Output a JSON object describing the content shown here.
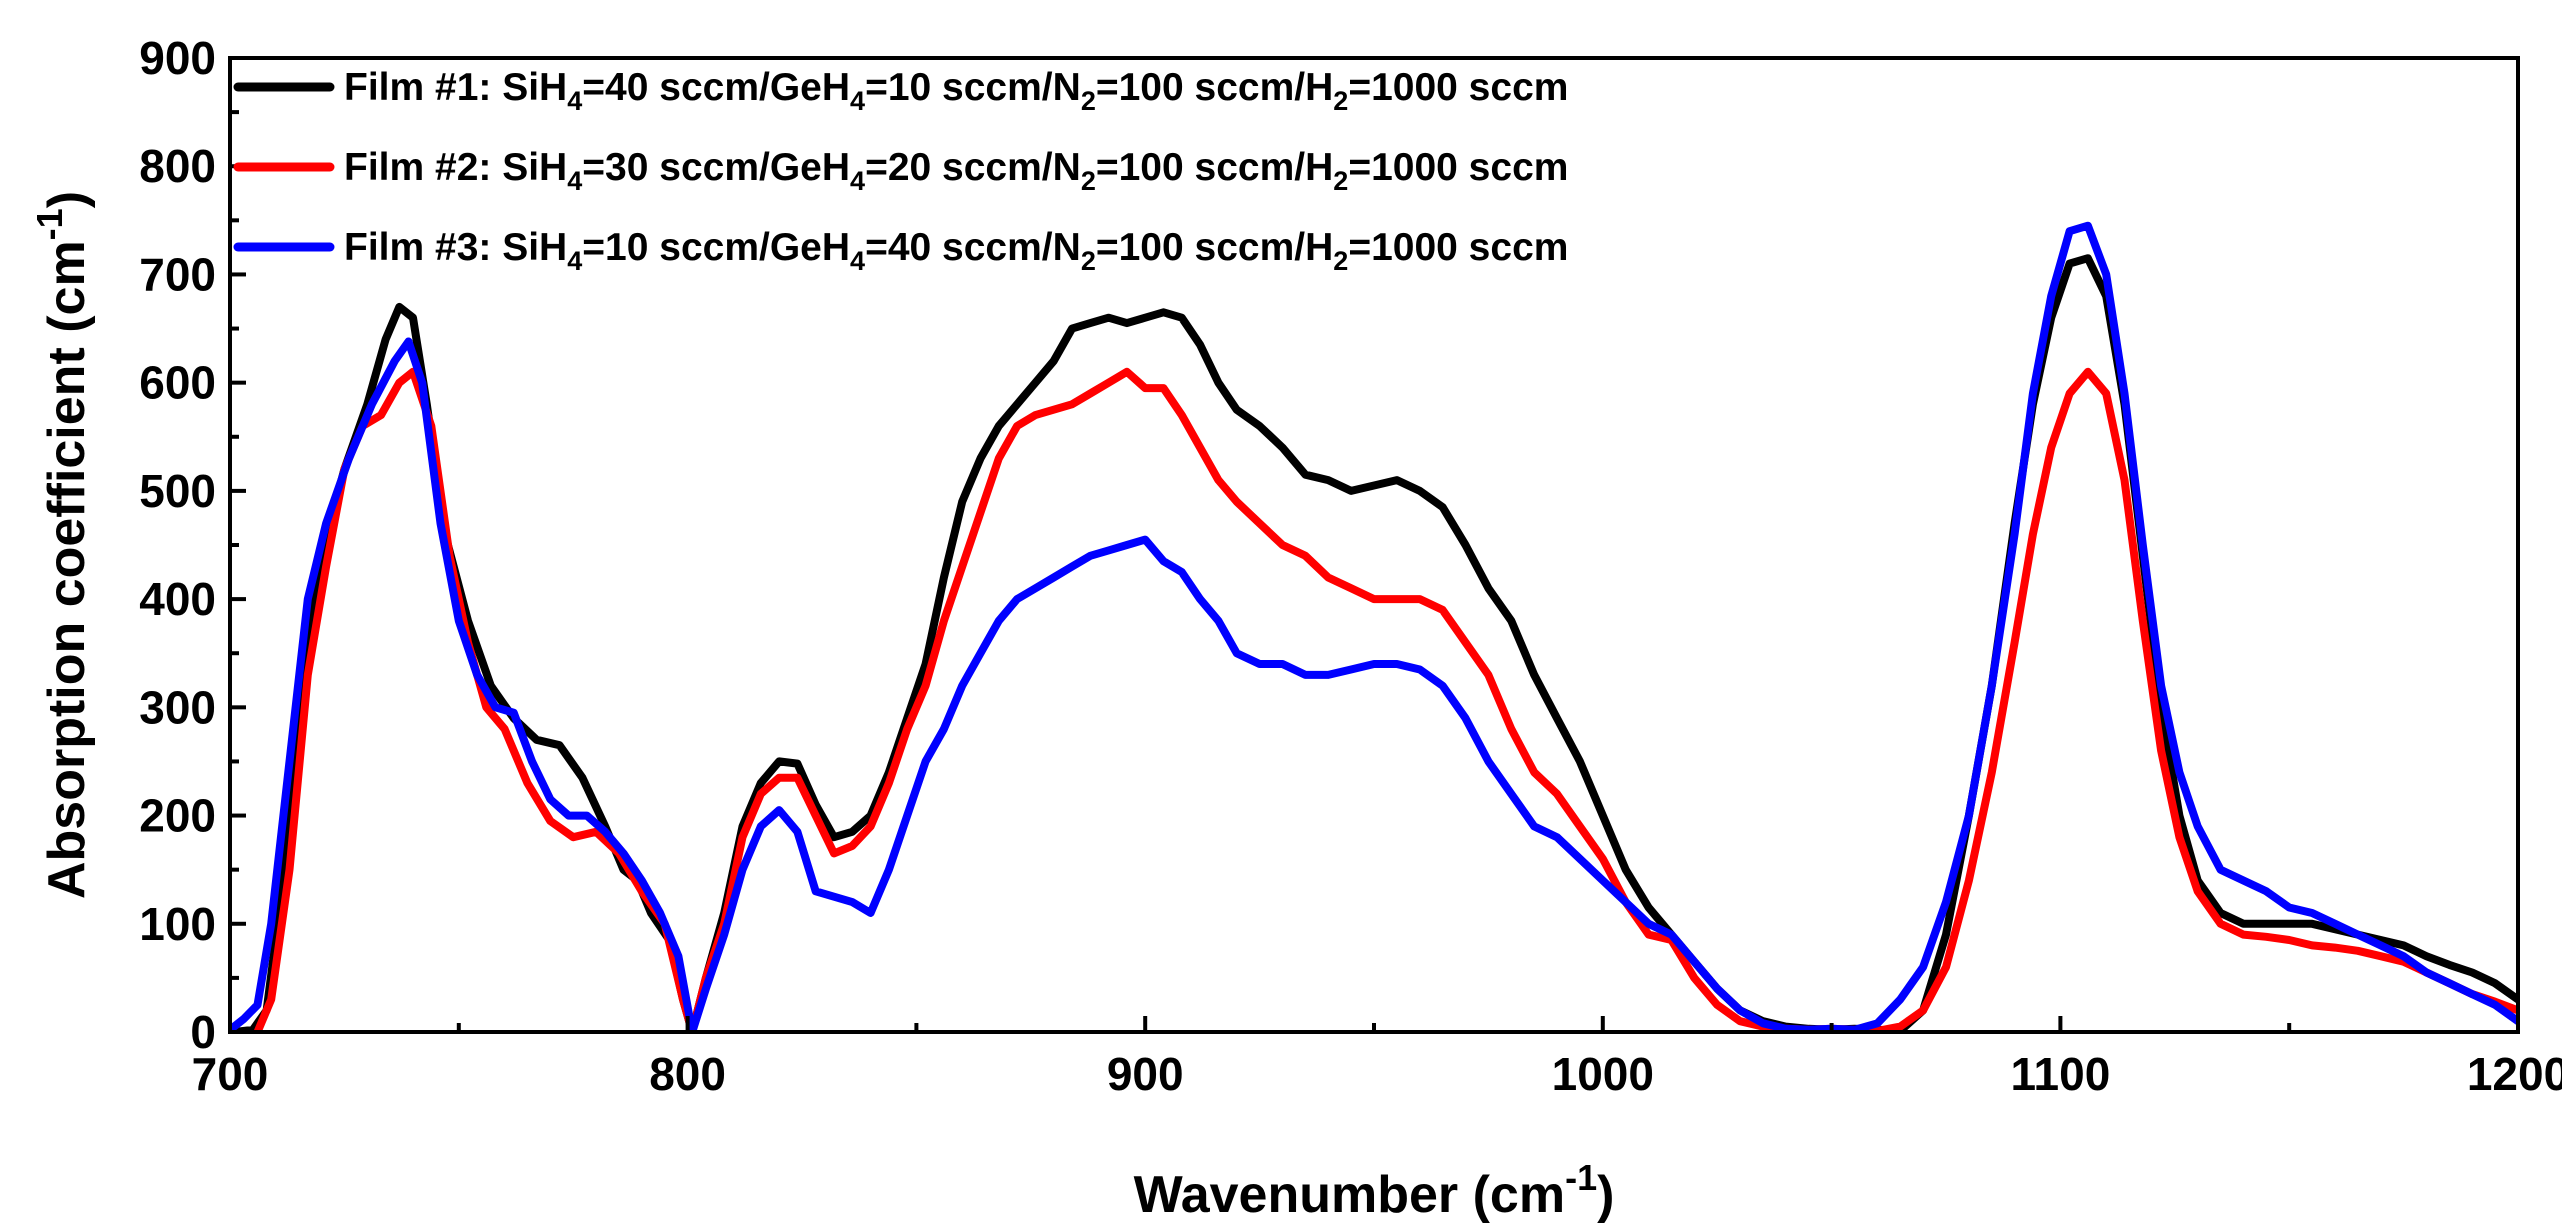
{
  "chart_data": {
    "type": "line",
    "title": "",
    "xlabel": {
      "main": "Wavenumber (cm",
      "sup": "-1",
      "close": ")"
    },
    "ylabel": {
      "main": "Absorption coefficient (cm",
      "sup": "-1",
      "close": ")"
    },
    "xlim": [
      700,
      1200
    ],
    "ylim": [
      0,
      900
    ],
    "xticks": [
      700,
      800,
      900,
      1000,
      1100,
      1200
    ],
    "yticks": [
      0,
      100,
      200,
      300,
      400,
      500,
      600,
      700,
      800,
      900
    ],
    "grid": false,
    "legend_position": "top-left",
    "series": [
      {
        "name": "Film #1",
        "color": "#000000",
        "legend": [
          {
            "t": "Film #1: SiH"
          },
          {
            "t": "4",
            "sub": true
          },
          {
            "t": "=40 sccm/GeH"
          },
          {
            "t": "4",
            "sub": true
          },
          {
            "t": "=10 sccm/N"
          },
          {
            "t": "2",
            "sub": true
          },
          {
            "t": "=100 sccm/H"
          },
          {
            "t": "2",
            "sub": true
          },
          {
            "t": "=1000 sccm"
          }
        ],
        "x": [
          701,
          705,
          708,
          712,
          716,
          720,
          725,
          730,
          734,
          737,
          740,
          743,
          747,
          752,
          757,
          762,
          767,
          772,
          777,
          782,
          786,
          789,
          792,
          796,
          799,
          801,
          804,
          808,
          812,
          816,
          820,
          824,
          828,
          832,
          836,
          840,
          844,
          848,
          852,
          856,
          860,
          864,
          868,
          872,
          876,
          880,
          884,
          888,
          892,
          896,
          900,
          904,
          908,
          912,
          916,
          920,
          925,
          930,
          935,
          940,
          945,
          950,
          955,
          960,
          965,
          970,
          975,
          980,
          985,
          990,
          995,
          1000,
          1005,
          1010,
          1015,
          1020,
          1025,
          1030,
          1035,
          1040,
          1045,
          1050,
          1055,
          1060,
          1065,
          1070,
          1075,
          1080,
          1085,
          1090,
          1094,
          1098,
          1102,
          1106,
          1110,
          1114,
          1118,
          1122,
          1126,
          1130,
          1135,
          1140,
          1145,
          1150,
          1155,
          1160,
          1165,
          1170,
          1175,
          1180,
          1185,
          1190,
          1195,
          1200
        ],
        "y": [
          0,
          2,
          20,
          150,
          320,
          440,
          520,
          580,
          640,
          670,
          660,
          580,
          460,
          380,
          320,
          290,
          270,
          265,
          235,
          190,
          150,
          140,
          110,
          85,
          30,
          0,
          50,
          110,
          190,
          230,
          250,
          248,
          210,
          180,
          185,
          200,
          240,
          290,
          340,
          420,
          490,
          530,
          560,
          580,
          600,
          620,
          650,
          655,
          660,
          655,
          660,
          665,
          660,
          635,
          600,
          575,
          560,
          540,
          515,
          510,
          500,
          505,
          510,
          500,
          485,
          450,
          410,
          380,
          330,
          290,
          250,
          200,
          150,
          115,
          90,
          65,
          40,
          20,
          10,
          5,
          3,
          2,
          3,
          2,
          1,
          20,
          90,
          200,
          320,
          470,
          580,
          660,
          710,
          715,
          680,
          580,
          440,
          300,
          200,
          140,
          110,
          100,
          100,
          100,
          100,
          95,
          90,
          85,
          80,
          70,
          62,
          55,
          45,
          30
        ]
      },
      {
        "name": "Film #2",
        "color": "#ff0000",
        "legend": [
          {
            "t": "Film #2: SiH"
          },
          {
            "t": "4",
            "sub": true
          },
          {
            "t": "=30 sccm/GeH"
          },
          {
            "t": "4",
            "sub": true
          },
          {
            "t": "=20 sccm/N"
          },
          {
            "t": "2",
            "sub": true
          },
          {
            "t": "=100 sccm/H"
          },
          {
            "t": "2",
            "sub": true
          },
          {
            "t": "=1000 sccm"
          }
        ],
        "x": [
          706,
          709,
          713,
          717,
          721,
          725,
          729,
          733,
          737,
          740,
          744,
          748,
          752,
          756,
          760,
          765,
          770,
          775,
          780,
          785,
          790,
          795,
          799,
          801,
          804,
          808,
          812,
          816,
          820,
          824,
          828,
          832,
          836,
          840,
          844,
          848,
          852,
          856,
          860,
          864,
          868,
          872,
          876,
          880,
          884,
          888,
          892,
          896,
          900,
          904,
          908,
          912,
          916,
          920,
          925,
          930,
          935,
          940,
          945,
          950,
          955,
          960,
          965,
          970,
          975,
          980,
          985,
          990,
          995,
          1000,
          1005,
          1010,
          1015,
          1020,
          1025,
          1030,
          1035,
          1040,
          1045,
          1050,
          1055,
          1060,
          1065,
          1070,
          1075,
          1080,
          1085,
          1090,
          1094,
          1098,
          1102,
          1106,
          1110,
          1114,
          1118,
          1122,
          1126,
          1130,
          1135,
          1140,
          1145,
          1150,
          1155,
          1160,
          1165,
          1170,
          1175,
          1180,
          1185,
          1190,
          1195,
          1200
        ],
        "y": [
          0,
          30,
          150,
          330,
          430,
          520,
          560,
          570,
          600,
          610,
          560,
          440,
          360,
          300,
          280,
          230,
          195,
          180,
          185,
          165,
          130,
          100,
          30,
          0,
          50,
          100,
          180,
          220,
          235,
          235,
          200,
          165,
          172,
          190,
          230,
          280,
          320,
          380,
          430,
          480,
          530,
          560,
          570,
          575,
          580,
          590,
          600,
          610,
          595,
          595,
          570,
          540,
          510,
          490,
          470,
          450,
          440,
          420,
          410,
          400,
          400,
          400,
          390,
          360,
          330,
          280,
          240,
          220,
          190,
          160,
          120,
          90,
          85,
          50,
          25,
          10,
          5,
          3,
          2,
          3,
          2,
          1,
          5,
          20,
          60,
          140,
          240,
          360,
          460,
          540,
          590,
          610,
          590,
          510,
          380,
          260,
          180,
          130,
          100,
          90,
          88,
          85,
          80,
          78,
          75,
          70,
          65,
          55,
          45,
          35,
          28,
          20
        ]
      },
      {
        "name": "Film #3",
        "color": "#0000ff",
        "legend": [
          {
            "t": "Film #3: SiH"
          },
          {
            "t": "4",
            "sub": true
          },
          {
            "t": "=10 sccm/GeH"
          },
          {
            "t": "4",
            "sub": true
          },
          {
            "t": "=40 sccm/N"
          },
          {
            "t": "2",
            "sub": true
          },
          {
            "t": "=100 sccm/H"
          },
          {
            "t": "2",
            "sub": true
          },
          {
            "t": "=1000 sccm"
          }
        ],
        "x": [
          700,
          703,
          706,
          709,
          713,
          717,
          721,
          726,
          731,
          736,
          739,
          742,
          746,
          750,
          754,
          758,
          762,
          766,
          770,
          774,
          778,
          782,
          786,
          790,
          794,
          798,
          801,
          804,
          808,
          812,
          816,
          820,
          824,
          828,
          832,
          836,
          840,
          844,
          848,
          852,
          856,
          860,
          864,
          868,
          872,
          876,
          880,
          884,
          888,
          892,
          896,
          900,
          904,
          908,
          912,
          916,
          920,
          925,
          930,
          935,
          940,
          945,
          950,
          955,
          960,
          965,
          970,
          975,
          980,
          985,
          990,
          995,
          1000,
          1005,
          1010,
          1015,
          1020,
          1025,
          1030,
          1035,
          1040,
          1045,
          1050,
          1055,
          1060,
          1065,
          1070,
          1075,
          1080,
          1085,
          1090,
          1094,
          1098,
          1102,
          1106,
          1110,
          1114,
          1118,
          1122,
          1126,
          1130,
          1135,
          1140,
          1145,
          1150,
          1155,
          1160,
          1165,
          1170,
          1175,
          1180,
          1185,
          1190,
          1195,
          1200
        ],
        "y": [
          2,
          12,
          25,
          100,
          250,
          400,
          470,
          530,
          580,
          620,
          638,
          600,
          470,
          380,
          330,
          300,
          295,
          250,
          215,
          200,
          200,
          185,
          165,
          140,
          110,
          70,
          0,
          40,
          90,
          150,
          190,
          205,
          185,
          130,
          125,
          120,
          110,
          150,
          200,
          250,
          280,
          320,
          350,
          380,
          400,
          410,
          420,
          430,
          440,
          445,
          450,
          455,
          435,
          425,
          400,
          380,
          350,
          340,
          340,
          330,
          330,
          335,
          340,
          340,
          335,
          320,
          290,
          250,
          220,
          190,
          180,
          160,
          140,
          120,
          100,
          90,
          65,
          40,
          20,
          8,
          3,
          2,
          3,
          2,
          8,
          30,
          60,
          120,
          200,
          320,
          460,
          590,
          680,
          740,
          745,
          700,
          590,
          450,
          320,
          240,
          190,
          150,
          140,
          130,
          115,
          110,
          100,
          90,
          80,
          70,
          55,
          45,
          35,
          25,
          10
        ]
      }
    ]
  }
}
